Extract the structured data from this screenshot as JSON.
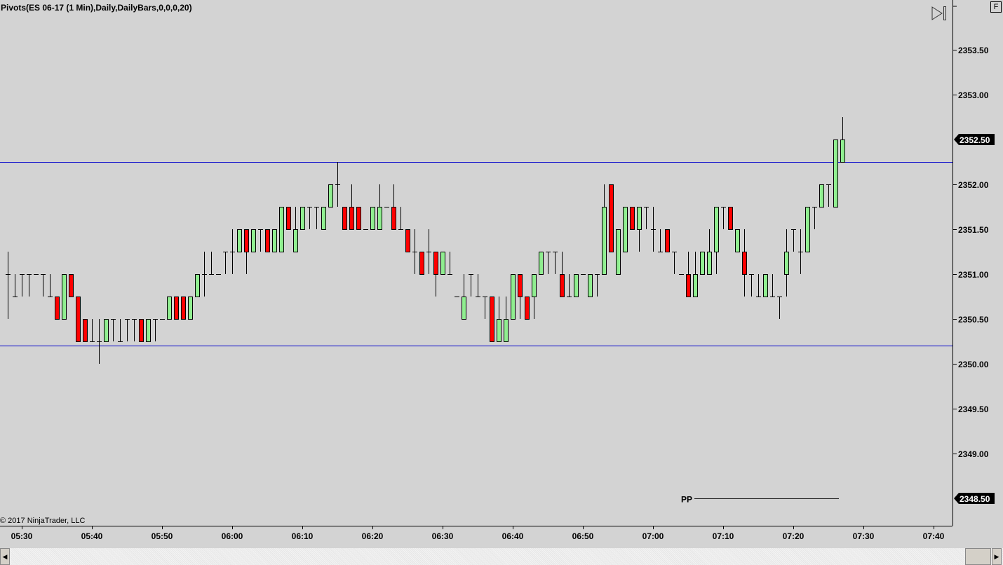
{
  "header": {
    "title": "Pivots(ES 06-17 (1 Min),Daily,DailyBars,0,0,0,20)",
    "copyright": "© 2017 NinjaTrader, LLC",
    "f_button": "F",
    "icons": [
      "jump-to-end-icon",
      "scroll-left-icon",
      "scroll-right-icon"
    ]
  },
  "chart_data": {
    "type": "candlestick",
    "title": "Pivots(ES 06-17 (1 Min),Daily,DailyBars,0,0,0,20)",
    "ylim": [
      2348.1,
      2353.95
    ],
    "y_ticks": [
      "2353.50",
      "2353.00",
      "2352.50",
      "2352.00",
      "2351.50",
      "2351.00",
      "2350.50",
      "2350.00",
      "2349.50",
      "2349.00",
      "2348.50"
    ],
    "x_ticks": [
      "05:30",
      "05:40",
      "05:50",
      "06:00",
      "06:10",
      "06:20",
      "06:30",
      "06:40",
      "06:50",
      "07:00",
      "07:10",
      "07:20",
      "07:30",
      "07:40"
    ],
    "xlim": [
      "05:27",
      "07:43"
    ],
    "colors": {
      "up": "#90ee90",
      "down": "#ff0000",
      "outline": "#000000",
      "pivot_lines": "#0000cc",
      "background": "#d3d3d3"
    },
    "last_price_marker": "2352.50",
    "pp_marker": "2348.50",
    "levels": [
      {
        "price": 2352.25,
        "color": "#0000cc",
        "from": "05:27",
        "to": "07:43"
      },
      {
        "price": 2350.2,
        "color": "#0000cc",
        "from": "05:27",
        "to": "07:43"
      },
      {
        "label": "PP",
        "price": 2348.5,
        "color": "#000000",
        "from": "07:06",
        "to": "07:26"
      }
    ],
    "candles": [
      [
        "05:28",
        2351,
        2351.25,
        2350.5,
        2351
      ],
      [
        "05:29",
        2350.75,
        2351,
        2350.75,
        2350.75
      ],
      [
        "05:30",
        2351,
        2351,
        2350.75,
        2351
      ],
      [
        "05:31",
        2351,
        2351,
        2350.75,
        2351
      ],
      [
        "05:32",
        2351,
        2351,
        2351,
        2351
      ],
      [
        "05:33",
        2351,
        2351,
        2350.75,
        2351
      ],
      [
        "05:34",
        2350.75,
        2351,
        2350.75,
        2350.75
      ],
      [
        "05:35",
        2350.75,
        2350.75,
        2350.5,
        2350.5
      ],
      [
        "05:36",
        2350.5,
        2351,
        2350.5,
        2351
      ],
      [
        "05:37",
        2351,
        2351,
        2350.75,
        2350.75
      ],
      [
        "05:38",
        2350.75,
        2350.75,
        2350.25,
        2350.25
      ],
      [
        "05:39",
        2350.5,
        2350.5,
        2350.25,
        2350.25
      ],
      [
        "05:40",
        2350.25,
        2350.5,
        2350.25,
        2350.25
      ],
      [
        "05:41",
        2350.25,
        2350.5,
        2350,
        2350.25
      ],
      [
        "05:42",
        2350.25,
        2350.5,
        2350.25,
        2350.5
      ],
      [
        "05:43",
        2350.5,
        2350.5,
        2350.25,
        2350.5
      ],
      [
        "05:44",
        2350.25,
        2350.5,
        2350.25,
        2350.25
      ],
      [
        "05:45",
        2350.5,
        2350.5,
        2350.25,
        2350.5
      ],
      [
        "05:46",
        2350.5,
        2350.5,
        2350.25,
        2350.5
      ],
      [
        "05:47",
        2350.5,
        2350.5,
        2350.25,
        2350.25
      ],
      [
        "05:48",
        2350.25,
        2350.5,
        2350.25,
        2350.5
      ],
      [
        "05:49",
        2350.5,
        2350.5,
        2350.25,
        2350.5
      ],
      [
        "05:50",
        2350.5,
        2350.5,
        2350.5,
        2350.5
      ],
      [
        "05:51",
        2350.5,
        2350.75,
        2350.5,
        2350.75
      ],
      [
        "05:52",
        2350.75,
        2350.75,
        2350.5,
        2350.5
      ],
      [
        "05:53",
        2350.75,
        2350.75,
        2350.5,
        2350.5
      ],
      [
        "05:54",
        2350.5,
        2350.75,
        2350.5,
        2350.75
      ],
      [
        "05:55",
        2350.75,
        2351,
        2350.75,
        2351
      ],
      [
        "05:56",
        2351,
        2351.25,
        2350.75,
        2351
      ],
      [
        "05:57",
        2351,
        2351.25,
        2351,
        2351
      ],
      [
        "05:58",
        2351,
        2351,
        2351,
        2351
      ],
      [
        "05:59",
        2351.25,
        2351.25,
        2351,
        2351.25
      ],
      [
        "06:00",
        2351.25,
        2351.5,
        2351,
        2351.25
      ],
      [
        "06:01",
        2351.25,
        2351.5,
        2351.25,
        2351.5
      ],
      [
        "06:02",
        2351.5,
        2351.5,
        2351,
        2351.25
      ],
      [
        "06:03",
        2351.25,
        2351.5,
        2351.25,
        2351.5
      ],
      [
        "06:04",
        2351.5,
        2351.5,
        2351.25,
        2351.5
      ],
      [
        "06:05",
        2351.5,
        2351.5,
        2351.25,
        2351.25
      ],
      [
        "06:06",
        2351.25,
        2351.5,
        2351.25,
        2351.5
      ],
      [
        "06:07",
        2351.25,
        2351.75,
        2351.25,
        2351.75
      ],
      [
        "06:08",
        2351.75,
        2351.75,
        2351.5,
        2351.5
      ],
      [
        "06:09",
        2351.25,
        2351.75,
        2351.25,
        2351.5
      ],
      [
        "06:10",
        2351.5,
        2351.75,
        2351.5,
        2351.75
      ],
      [
        "06:11",
        2351.75,
        2351.75,
        2351.5,
        2351.75
      ],
      [
        "06:12",
        2351.75,
        2351.75,
        2351.5,
        2351.75
      ],
      [
        "06:13",
        2351.5,
        2351.75,
        2351.5,
        2351.75
      ],
      [
        "06:14",
        2351.75,
        2352,
        2351.75,
        2352
      ],
      [
        "06:15",
        2352,
        2352.25,
        2351.75,
        2352
      ],
      [
        "06:16",
        2351.75,
        2351.75,
        2351.5,
        2351.5
      ],
      [
        "06:17",
        2351.75,
        2352,
        2351.5,
        2351.5
      ],
      [
        "06:18",
        2351.75,
        2351.75,
        2351.5,
        2351.5
      ],
      [
        "06:19",
        2351.5,
        2351.5,
        2351.5,
        2351.5
      ],
      [
        "06:20",
        2351.5,
        2351.75,
        2351.5,
        2351.75
      ],
      [
        "06:21",
        2351.5,
        2352,
        2351.5,
        2351.75
      ],
      [
        "06:22",
        2351.75,
        2351.75,
        2351.75,
        2351.75
      ],
      [
        "06:23",
        2351.75,
        2352,
        2351.5,
        2351.5
      ],
      [
        "06:24",
        2351.5,
        2351.75,
        2351.5,
        2351.5
      ],
      [
        "06:25",
        2351.5,
        2351.5,
        2351.25,
        2351.25
      ],
      [
        "06:26",
        2351.25,
        2351.5,
        2351,
        2351.25
      ],
      [
        "06:27",
        2351.25,
        2351.25,
        2351,
        2351
      ],
      [
        "06:28",
        2351.25,
        2351.5,
        2351,
        2351.25
      ],
      [
        "06:29",
        2351.25,
        2351.25,
        2350.75,
        2351
      ],
      [
        "06:30",
        2351,
        2351.25,
        2351,
        2351.25
      ],
      [
        "06:31",
        2351,
        2351.25,
        2351,
        2351
      ],
      [
        "06:32",
        2350.75,
        2350.75,
        2350.75,
        2350.75
      ],
      [
        "06:33",
        2350.5,
        2351,
        2350.5,
        2350.75
      ],
      [
        "06:34",
        2351,
        2351,
        2350.75,
        2351
      ],
      [
        "06:35",
        2350.75,
        2351,
        2350.75,
        2350.75
      ],
      [
        "06:36",
        2350.75,
        2350.75,
        2350.5,
        2350.75
      ],
      [
        "06:37",
        2350.75,
        2350.75,
        2350.25,
        2350.25
      ],
      [
        "06:38",
        2350.25,
        2350.75,
        2350.25,
        2350.5
      ],
      [
        "06:39",
        2350.25,
        2350.75,
        2350.25,
        2350.5
      ],
      [
        "06:40",
        2350.5,
        2351,
        2350.5,
        2351
      ],
      [
        "06:41",
        2351,
        2351,
        2350.5,
        2350.75
      ],
      [
        "06:42",
        2350.75,
        2350.75,
        2350.5,
        2350.5
      ],
      [
        "06:43",
        2350.75,
        2351,
        2350.5,
        2351
      ],
      [
        "06:44",
        2351,
        2351.25,
        2351,
        2351.25
      ],
      [
        "06:45",
        2351.25,
        2351.25,
        2351,
        2351.25
      ],
      [
        "06:46",
        2351.25,
        2351.25,
        2351,
        2351.25
      ],
      [
        "06:47",
        2351,
        2351.25,
        2350.75,
        2350.75
      ],
      [
        "06:48",
        2350.75,
        2351,
        2350.75,
        2350.75
      ],
      [
        "06:49",
        2350.75,
        2351,
        2350.75,
        2351
      ],
      [
        "06:50",
        2351,
        2351,
        2351,
        2351
      ],
      [
        "06:51",
        2350.75,
        2351,
        2350.75,
        2351
      ],
      [
        "06:52",
        2351,
        2351,
        2350.75,
        2351
      ],
      [
        "06:53",
        2351,
        2352,
        2351,
        2351.75
      ],
      [
        "06:54",
        2352,
        2352,
        2351.25,
        2351.25
      ],
      [
        "06:55",
        2351,
        2351.5,
        2351,
        2351.5
      ],
      [
        "06:56",
        2351.25,
        2351.75,
        2351.25,
        2351.75
      ],
      [
        "06:57",
        2351.75,
        2351.75,
        2351.5,
        2351.5
      ],
      [
        "06:58",
        2351.5,
        2351.75,
        2351.25,
        2351.75
      ],
      [
        "06:59",
        2351.75,
        2351.75,
        2351.5,
        2351.75
      ],
      [
        "07:00",
        2351.5,
        2351.75,
        2351.25,
        2351.5
      ],
      [
        "07:01",
        2351.25,
        2351.5,
        2351.25,
        2351.25
      ],
      [
        "07:02",
        2351.5,
        2351.5,
        2351.25,
        2351.25
      ],
      [
        "07:03",
        2351.25,
        2351.25,
        2351,
        2351.25
      ],
      [
        "07:04",
        2351,
        2351,
        2351,
        2351
      ],
      [
        "07:05",
        2351,
        2351.25,
        2350.75,
        2350.75
      ],
      [
        "07:06",
        2350.75,
        2351.25,
        2350.75,
        2351
      ],
      [
        "07:07",
        2351,
        2351.25,
        2351,
        2351.25
      ],
      [
        "07:08",
        2351,
        2351.5,
        2351,
        2351.25
      ],
      [
        "07:09",
        2351.25,
        2351.75,
        2351,
        2351.75
      ],
      [
        "07:10",
        2351.75,
        2351.75,
        2351.5,
        2351.75
      ],
      [
        "07:11",
        2351.75,
        2351.75,
        2351.5,
        2351.5
      ],
      [
        "07:12",
        2351.25,
        2351.5,
        2351.25,
        2351.5
      ],
      [
        "07:13",
        2351.25,
        2351.5,
        2350.75,
        2351
      ],
      [
        "07:14",
        2351,
        2351,
        2350.75,
        2351
      ],
      [
        "07:15",
        2350.75,
        2351,
        2350.75,
        2350.75
      ],
      [
        "07:16",
        2350.75,
        2351,
        2350.75,
        2351
      ],
      [
        "07:17",
        2350.75,
        2351,
        2350.75,
        2350.75
      ],
      [
        "07:18",
        2350.75,
        2350.75,
        2350.5,
        2350.75
      ],
      [
        "07:19",
        2351,
        2351.5,
        2350.75,
        2351.25
      ],
      [
        "07:20",
        2351.5,
        2351.5,
        2351.25,
        2351.5
      ],
      [
        "07:21",
        2351.25,
        2351.5,
        2351,
        2351.25
      ],
      [
        "07:22",
        2351.25,
        2351.75,
        2351.25,
        2351.75
      ],
      [
        "07:23",
        2351.75,
        2351.75,
        2351.5,
        2351.75
      ],
      [
        "07:24",
        2351.75,
        2352,
        2351.75,
        2352
      ],
      [
        "07:25",
        2352,
        2352,
        2351.75,
        2352
      ],
      [
        "07:26",
        2351.75,
        2352.5,
        2351.75,
        2352.5
      ],
      [
        "07:27",
        2352.25,
        2352.75,
        2352.25,
        2352.5
      ]
    ]
  }
}
